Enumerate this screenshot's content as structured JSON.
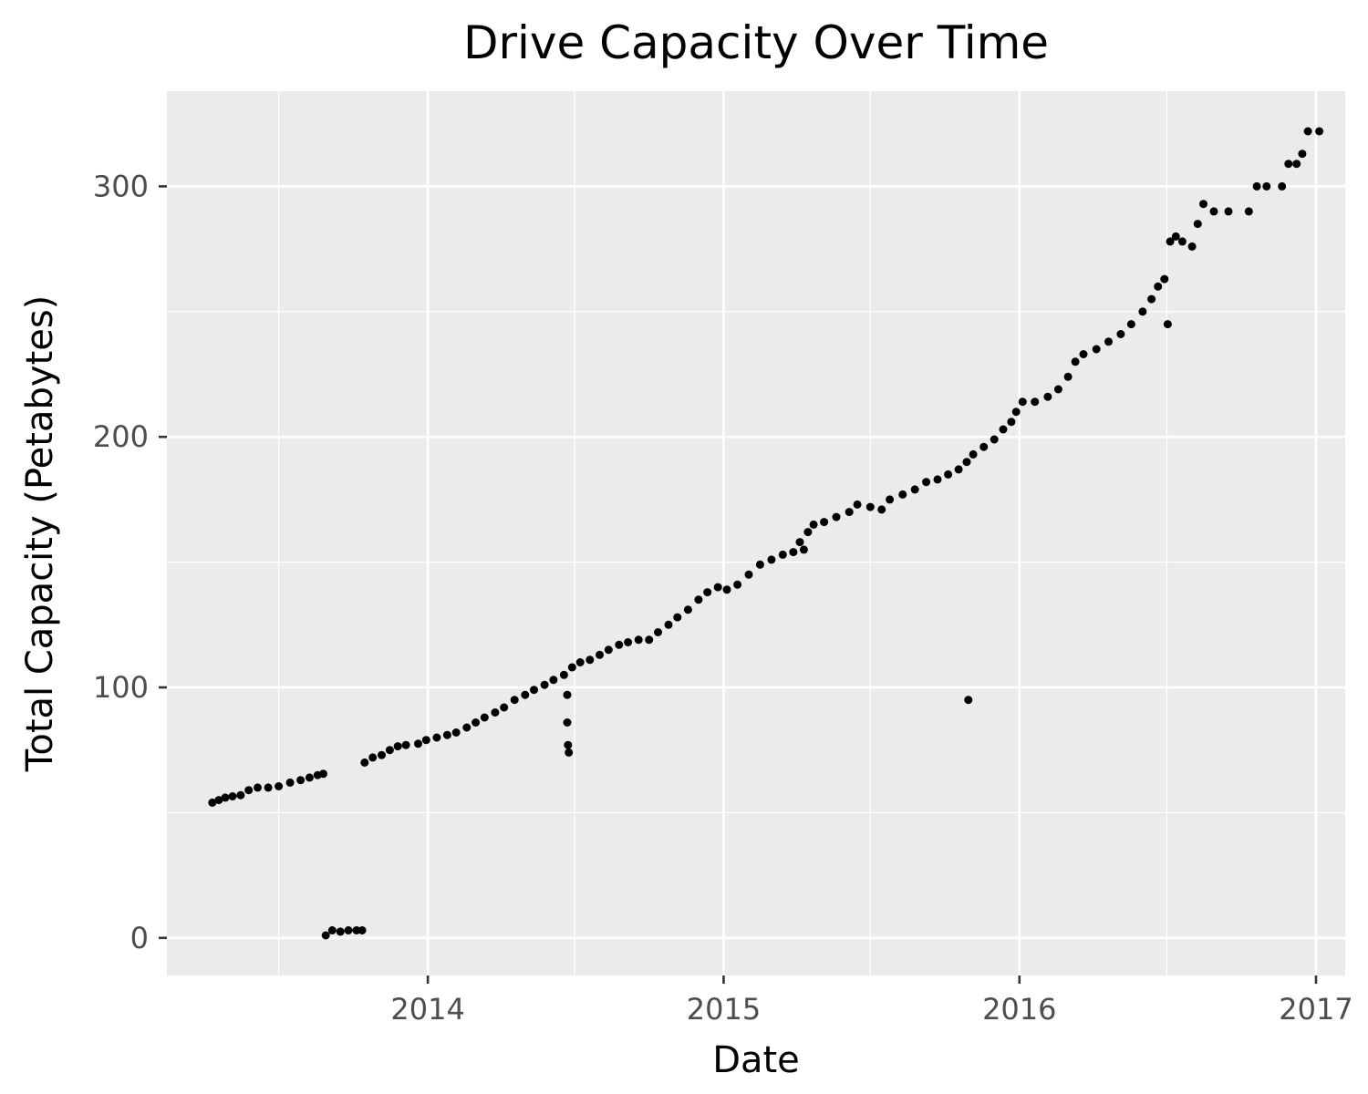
{
  "chart_data": {
    "type": "scatter",
    "title": "Drive Capacity Over Time",
    "xlabel": "Date",
    "ylabel": "Total Capacity (Petabytes)",
    "x_tick_labels": [
      "2014",
      "2015",
      "2016",
      "2017"
    ],
    "y_tick_labels": [
      "0",
      "100",
      "200",
      "300"
    ],
    "xlim": [
      "2013-02-13",
      "2017-02-06"
    ],
    "ylim": [
      -15,
      338
    ],
    "grid": true,
    "legend": "none",
    "colors": {
      "panel": "#ebebeb",
      "grid": "#ffffff",
      "point": "#000000",
      "tick": "#4d4d4d"
    },
    "series": [
      {
        "points": [
          [
            "2013-04-10",
            54
          ],
          [
            "2013-04-18",
            55
          ],
          [
            "2013-04-26",
            56
          ],
          [
            "2013-05-05",
            56.5
          ],
          [
            "2013-05-15",
            57
          ],
          [
            "2013-05-25",
            59
          ],
          [
            "2013-06-05",
            60
          ],
          [
            "2013-06-18",
            60
          ],
          [
            "2013-07-01",
            60.5
          ],
          [
            "2013-07-15",
            62
          ],
          [
            "2013-07-28",
            63
          ],
          [
            "2013-08-08",
            64
          ],
          [
            "2013-08-18",
            65
          ],
          [
            "2013-08-25",
            65.5
          ],
          [
            "2013-08-28",
            1
          ],
          [
            "2013-09-05",
            3
          ],
          [
            "2013-09-15",
            2.5
          ],
          [
            "2013-09-25",
            3
          ],
          [
            "2013-10-05",
            3
          ],
          [
            "2013-10-12",
            3
          ],
          [
            "2013-10-15",
            70
          ],
          [
            "2013-10-25",
            72
          ],
          [
            "2013-11-05",
            73
          ],
          [
            "2013-11-15",
            75
          ],
          [
            "2013-11-25",
            76.5
          ],
          [
            "2013-12-05",
            77
          ],
          [
            "2013-12-20",
            77.5
          ],
          [
            "2013-12-30",
            79
          ],
          [
            "2014-01-12",
            80
          ],
          [
            "2014-01-25",
            81
          ],
          [
            "2014-02-05",
            82
          ],
          [
            "2014-02-18",
            84
          ],
          [
            "2014-03-01",
            86
          ],
          [
            "2014-03-12",
            88
          ],
          [
            "2014-03-25",
            90
          ],
          [
            "2014-04-05",
            92
          ],
          [
            "2014-04-18",
            95
          ],
          [
            "2014-05-01",
            97
          ],
          [
            "2014-05-12",
            99
          ],
          [
            "2014-05-25",
            101
          ],
          [
            "2014-06-05",
            103
          ],
          [
            "2014-06-18",
            105
          ],
          [
            "2014-06-28",
            108
          ],
          [
            "2014-07-08",
            110
          ],
          [
            "2014-06-22",
            97
          ],
          [
            "2014-06-22",
            86
          ],
          [
            "2014-06-23",
            77
          ],
          [
            "2014-06-24",
            74
          ],
          [
            "2014-07-20",
            111
          ],
          [
            "2014-08-01",
            113
          ],
          [
            "2014-08-12",
            115
          ],
          [
            "2014-08-25",
            117
          ],
          [
            "2014-09-05",
            118
          ],
          [
            "2014-09-18",
            119
          ],
          [
            "2014-10-01",
            119
          ],
          [
            "2014-10-12",
            122
          ],
          [
            "2014-10-25",
            125
          ],
          [
            "2014-11-05",
            128
          ],
          [
            "2014-11-18",
            131
          ],
          [
            "2014-12-01",
            135
          ],
          [
            "2014-12-12",
            138
          ],
          [
            "2014-12-25",
            140
          ],
          [
            "2015-01-05",
            139
          ],
          [
            "2015-01-18",
            141
          ],
          [
            "2015-02-01",
            145
          ],
          [
            "2015-02-15",
            149
          ],
          [
            "2015-03-01",
            151
          ],
          [
            "2015-03-15",
            153
          ],
          [
            "2015-03-28",
            154
          ],
          [
            "2015-04-05",
            158
          ],
          [
            "2015-04-10",
            155
          ],
          [
            "2015-04-15",
            162
          ],
          [
            "2015-04-22",
            165
          ],
          [
            "2015-05-05",
            166
          ],
          [
            "2015-05-20",
            168
          ],
          [
            "2015-06-05",
            170
          ],
          [
            "2015-06-15",
            173
          ],
          [
            "2015-07-01",
            172
          ],
          [
            "2015-07-15",
            171
          ],
          [
            "2015-07-25",
            175
          ],
          [
            "2015-08-10",
            177
          ],
          [
            "2015-08-25",
            179
          ],
          [
            "2015-09-08",
            182
          ],
          [
            "2015-09-22",
            183
          ],
          [
            "2015-10-05",
            185
          ],
          [
            "2015-10-18",
            187
          ],
          [
            "2015-10-28",
            190
          ],
          [
            "2015-11-05",
            193
          ],
          [
            "2015-10-30",
            95
          ],
          [
            "2015-11-18",
            196
          ],
          [
            "2015-12-01",
            199
          ],
          [
            "2015-12-12",
            203
          ],
          [
            "2015-12-22",
            206
          ],
          [
            "2015-12-28",
            210
          ],
          [
            "2016-01-05",
            214
          ],
          [
            "2016-01-20",
            214
          ],
          [
            "2016-02-05",
            216
          ],
          [
            "2016-02-18",
            219
          ],
          [
            "2016-03-01",
            224
          ],
          [
            "2016-03-10",
            230
          ],
          [
            "2016-03-20",
            233
          ],
          [
            "2016-04-05",
            235
          ],
          [
            "2016-04-20",
            238
          ],
          [
            "2016-05-05",
            241
          ],
          [
            "2016-05-18",
            245
          ],
          [
            "2016-06-01",
            250
          ],
          [
            "2016-06-12",
            255
          ],
          [
            "2016-06-20",
            260
          ],
          [
            "2016-06-28",
            263
          ],
          [
            "2016-07-02",
            245
          ],
          [
            "2016-07-05",
            278
          ],
          [
            "2016-07-12",
            280
          ],
          [
            "2016-07-20",
            278
          ],
          [
            "2016-08-01",
            276
          ],
          [
            "2016-08-08",
            285
          ],
          [
            "2016-08-15",
            293
          ],
          [
            "2016-08-28",
            290
          ],
          [
            "2016-09-15",
            290
          ],
          [
            "2016-10-10",
            290
          ],
          [
            "2016-10-20",
            300
          ],
          [
            "2016-11-01",
            300
          ],
          [
            "2016-11-20",
            300
          ],
          [
            "2016-11-28",
            309
          ],
          [
            "2016-12-08",
            309
          ],
          [
            "2016-12-15",
            313
          ],
          [
            "2016-12-22",
            322
          ],
          [
            "2017-01-05",
            322
          ]
        ]
      }
    ]
  }
}
